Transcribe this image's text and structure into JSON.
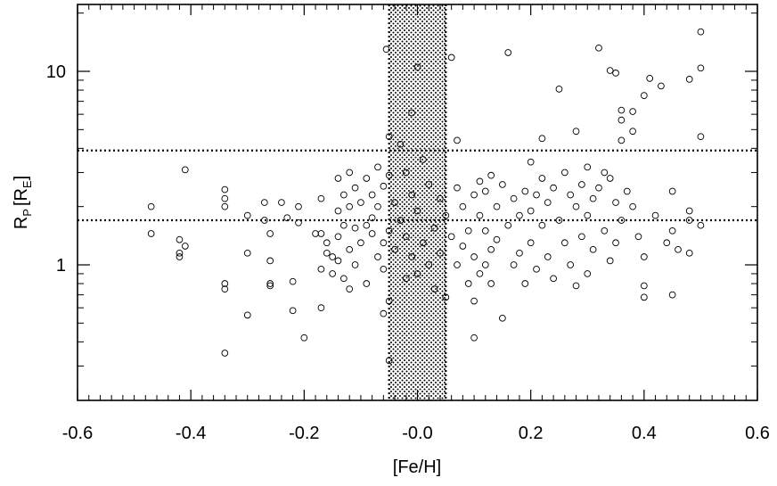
{
  "chart_data": {
    "type": "scatter",
    "title": "",
    "xlabel": "[Fe/H]",
    "ylabel": {
      "main": "R",
      "sub1": "P",
      "bracket_open": "[R",
      "sub2": "E",
      "bracket_close": "]"
    },
    "xlim": [
      -0.6,
      0.6
    ],
    "ylim": [
      0.22,
      22
    ],
    "y_scale": "log",
    "x_ticks": [
      -0.6,
      -0.4,
      -0.2,
      0.0,
      0.2,
      0.4,
      0.6
    ],
    "x_tick_labels": [
      "-0.6",
      "-0.4",
      "-0.2",
      "-0.0",
      "0.2",
      "0.4",
      "0.6"
    ],
    "y_ticks": [
      1,
      10
    ],
    "y_tick_labels": [
      "1",
      "10"
    ],
    "grid": false,
    "legend": "none",
    "shaded_band": {
      "x_from": -0.05,
      "x_to": 0.05,
      "pattern": "dotted"
    },
    "reference_lines": [
      {
        "axis": "y",
        "value": 3.9
      },
      {
        "axis": "y",
        "value": 1.7
      }
    ],
    "marker": "open-circle",
    "points": [
      {
        "x": -0.47,
        "y": 2.0
      },
      {
        "x": -0.47,
        "y": 1.45
      },
      {
        "x": -0.42,
        "y": 1.35
      },
      {
        "x": -0.42,
        "y": 1.15
      },
      {
        "x": -0.42,
        "y": 1.1
      },
      {
        "x": -0.41,
        "y": 3.1
      },
      {
        "x": -0.41,
        "y": 1.25
      },
      {
        "x": -0.34,
        "y": 2.45
      },
      {
        "x": -0.34,
        "y": 2.2
      },
      {
        "x": -0.34,
        "y": 2.0
      },
      {
        "x": -0.34,
        "y": 0.8
      },
      {
        "x": -0.34,
        "y": 0.75
      },
      {
        "x": -0.34,
        "y": 0.35
      },
      {
        "x": -0.3,
        "y": 1.8
      },
      {
        "x": -0.3,
        "y": 1.15
      },
      {
        "x": -0.3,
        "y": 0.55
      },
      {
        "x": -0.27,
        "y": 2.1
      },
      {
        "x": -0.27,
        "y": 1.7
      },
      {
        "x": -0.26,
        "y": 1.45
      },
      {
        "x": -0.26,
        "y": 1.05
      },
      {
        "x": -0.26,
        "y": 0.8
      },
      {
        "x": -0.26,
        "y": 0.78
      },
      {
        "x": -0.24,
        "y": 2.1
      },
      {
        "x": -0.23,
        "y": 1.75
      },
      {
        "x": -0.22,
        "y": 0.82
      },
      {
        "x": -0.22,
        "y": 0.58
      },
      {
        "x": -0.21,
        "y": 2.0
      },
      {
        "x": -0.21,
        "y": 1.65
      },
      {
        "x": -0.2,
        "y": 0.42
      },
      {
        "x": -0.18,
        "y": 1.45
      },
      {
        "x": -0.17,
        "y": 1.45
      },
      {
        "x": -0.17,
        "y": 2.2
      },
      {
        "x": -0.17,
        "y": 0.95
      },
      {
        "x": -0.17,
        "y": 0.6
      },
      {
        "x": -0.16,
        "y": 1.3
      },
      {
        "x": -0.16,
        "y": 1.15
      },
      {
        "x": -0.15,
        "y": 1.1
      },
      {
        "x": -0.15,
        "y": 0.9
      },
      {
        "x": -0.14,
        "y": 2.8
      },
      {
        "x": -0.14,
        "y": 1.9
      },
      {
        "x": -0.14,
        "y": 1.4
      },
      {
        "x": -0.14,
        "y": 1.05
      },
      {
        "x": -0.13,
        "y": 2.3
      },
      {
        "x": -0.13,
        "y": 1.6
      },
      {
        "x": -0.13,
        "y": 0.85
      },
      {
        "x": -0.12,
        "y": 3.0
      },
      {
        "x": -0.12,
        "y": 2.0
      },
      {
        "x": -0.12,
        "y": 1.2
      },
      {
        "x": -0.12,
        "y": 0.75
      },
      {
        "x": -0.11,
        "y": 2.5
      },
      {
        "x": -0.11,
        "y": 1.55
      },
      {
        "x": -0.11,
        "y": 1.0
      },
      {
        "x": -0.1,
        "y": 2.1
      },
      {
        "x": -0.1,
        "y": 1.3
      },
      {
        "x": -0.09,
        "y": 2.8
      },
      {
        "x": -0.09,
        "y": 1.6
      },
      {
        "x": -0.09,
        "y": 0.8
      },
      {
        "x": -0.08,
        "y": 2.3
      },
      {
        "x": -0.08,
        "y": 1.75
      },
      {
        "x": -0.08,
        "y": 1.45
      },
      {
        "x": -0.07,
        "y": 3.2
      },
      {
        "x": -0.07,
        "y": 2.0
      },
      {
        "x": -0.07,
        "y": 1.1
      },
      {
        "x": -0.06,
        "y": 2.55
      },
      {
        "x": -0.06,
        "y": 1.3
      },
      {
        "x": -0.06,
        "y": 0.95
      },
      {
        "x": -0.06,
        "y": 0.56
      },
      {
        "x": -0.055,
        "y": 13.0
      },
      {
        "x": -0.05,
        "y": 4.6
      },
      {
        "x": -0.05,
        "y": 2.9
      },
      {
        "x": -0.05,
        "y": 1.5
      },
      {
        "x": -0.05,
        "y": 0.65
      },
      {
        "x": -0.05,
        "y": 0.32
      },
      {
        "x": -0.04,
        "y": 2.1
      },
      {
        "x": -0.04,
        "y": 1.2
      },
      {
        "x": -0.03,
        "y": 4.2
      },
      {
        "x": -0.03,
        "y": 1.7
      },
      {
        "x": -0.02,
        "y": 3.0
      },
      {
        "x": -0.02,
        "y": 1.4
      },
      {
        "x": -0.02,
        "y": 0.85
      },
      {
        "x": -0.01,
        "y": 6.1
      },
      {
        "x": -0.01,
        "y": 2.3
      },
      {
        "x": -0.01,
        "y": 1.1
      },
      {
        "x": 0.0,
        "y": 10.5
      },
      {
        "x": 0.0,
        "y": 1.9
      },
      {
        "x": 0.0,
        "y": 0.9
      },
      {
        "x": 0.01,
        "y": 3.5
      },
      {
        "x": 0.01,
        "y": 1.3
      },
      {
        "x": 0.02,
        "y": 2.6
      },
      {
        "x": 0.02,
        "y": 1.0
      },
      {
        "x": 0.03,
        "y": 1.55
      },
      {
        "x": 0.03,
        "y": 0.75
      },
      {
        "x": 0.04,
        "y": 2.2
      },
      {
        "x": 0.04,
        "y": 1.15
      },
      {
        "x": 0.05,
        "y": 1.8
      },
      {
        "x": 0.05,
        "y": 0.68
      },
      {
        "x": 0.06,
        "y": 11.8
      },
      {
        "x": 0.06,
        "y": 1.4
      },
      {
        "x": 0.07,
        "y": 4.4
      },
      {
        "x": 0.07,
        "y": 2.5
      },
      {
        "x": 0.07,
        "y": 1.0
      },
      {
        "x": 0.08,
        "y": 2.0
      },
      {
        "x": 0.08,
        "y": 1.25
      },
      {
        "x": 0.09,
        "y": 1.5
      },
      {
        "x": 0.09,
        "y": 0.8
      },
      {
        "x": 0.1,
        "y": 2.3
      },
      {
        "x": 0.1,
        "y": 1.1
      },
      {
        "x": 0.1,
        "y": 0.65
      },
      {
        "x": 0.1,
        "y": 0.42
      },
      {
        "x": 0.11,
        "y": 2.7
      },
      {
        "x": 0.11,
        "y": 1.8
      },
      {
        "x": 0.11,
        "y": 0.9
      },
      {
        "x": 0.12,
        "y": 2.4
      },
      {
        "x": 0.12,
        "y": 1.5
      },
      {
        "x": 0.12,
        "y": 1.0
      },
      {
        "x": 0.13,
        "y": 2.9
      },
      {
        "x": 0.13,
        "y": 1.2
      },
      {
        "x": 0.13,
        "y": 0.8
      },
      {
        "x": 0.14,
        "y": 2.0
      },
      {
        "x": 0.14,
        "y": 1.35
      },
      {
        "x": 0.15,
        "y": 2.6
      },
      {
        "x": 0.15,
        "y": 0.53
      },
      {
        "x": 0.16,
        "y": 12.5
      },
      {
        "x": 0.16,
        "y": 1.6
      },
      {
        "x": 0.17,
        "y": 2.2
      },
      {
        "x": 0.17,
        "y": 1.0
      },
      {
        "x": 0.18,
        "y": 1.8
      },
      {
        "x": 0.18,
        "y": 1.15
      },
      {
        "x": 0.19,
        "y": 2.4
      },
      {
        "x": 0.19,
        "y": 0.8
      },
      {
        "x": 0.2,
        "y": 3.4
      },
      {
        "x": 0.2,
        "y": 1.9
      },
      {
        "x": 0.2,
        "y": 1.3
      },
      {
        "x": 0.21,
        "y": 2.3
      },
      {
        "x": 0.21,
        "y": 0.95
      },
      {
        "x": 0.22,
        "y": 4.5
      },
      {
        "x": 0.22,
        "y": 2.8
      },
      {
        "x": 0.22,
        "y": 1.6
      },
      {
        "x": 0.23,
        "y": 2.1
      },
      {
        "x": 0.23,
        "y": 1.1
      },
      {
        "x": 0.24,
        "y": 2.5
      },
      {
        "x": 0.24,
        "y": 0.85
      },
      {
        "x": 0.25,
        "y": 8.1
      },
      {
        "x": 0.25,
        "y": 1.7
      },
      {
        "x": 0.26,
        "y": 3.0
      },
      {
        "x": 0.26,
        "y": 1.3
      },
      {
        "x": 0.27,
        "y": 2.3
      },
      {
        "x": 0.27,
        "y": 1.0
      },
      {
        "x": 0.28,
        "y": 4.9
      },
      {
        "x": 0.28,
        "y": 2.0
      },
      {
        "x": 0.28,
        "y": 0.78
      },
      {
        "x": 0.29,
        "y": 2.6
      },
      {
        "x": 0.29,
        "y": 1.4
      },
      {
        "x": 0.3,
        "y": 3.2
      },
      {
        "x": 0.3,
        "y": 1.8
      },
      {
        "x": 0.3,
        "y": 0.9
      },
      {
        "x": 0.31,
        "y": 2.2
      },
      {
        "x": 0.31,
        "y": 1.2
      },
      {
        "x": 0.32,
        "y": 13.2
      },
      {
        "x": 0.32,
        "y": 2.5
      },
      {
        "x": 0.33,
        "y": 3.0
      },
      {
        "x": 0.33,
        "y": 1.5
      },
      {
        "x": 0.34,
        "y": 10.1
      },
      {
        "x": 0.34,
        "y": 2.8
      },
      {
        "x": 0.34,
        "y": 1.05
      },
      {
        "x": 0.35,
        "y": 9.8
      },
      {
        "x": 0.35,
        "y": 2.1
      },
      {
        "x": 0.35,
        "y": 1.3
      },
      {
        "x": 0.36,
        "y": 6.3
      },
      {
        "x": 0.36,
        "y": 5.6
      },
      {
        "x": 0.36,
        "y": 4.4
      },
      {
        "x": 0.36,
        "y": 1.7
      },
      {
        "x": 0.37,
        "y": 2.4
      },
      {
        "x": 0.38,
        "y": 6.2
      },
      {
        "x": 0.38,
        "y": 4.9
      },
      {
        "x": 0.38,
        "y": 2.0
      },
      {
        "x": 0.39,
        "y": 1.4
      },
      {
        "x": 0.4,
        "y": 7.5
      },
      {
        "x": 0.4,
        "y": 1.1
      },
      {
        "x": 0.4,
        "y": 0.78
      },
      {
        "x": 0.4,
        "y": 0.68
      },
      {
        "x": 0.41,
        "y": 9.2
      },
      {
        "x": 0.42,
        "y": 1.8
      },
      {
        "x": 0.43,
        "y": 8.4
      },
      {
        "x": 0.44,
        "y": 1.3
      },
      {
        "x": 0.45,
        "y": 2.4
      },
      {
        "x": 0.45,
        "y": 1.5
      },
      {
        "x": 0.45,
        "y": 0.7
      },
      {
        "x": 0.46,
        "y": 1.2
      },
      {
        "x": 0.48,
        "y": 9.1
      },
      {
        "x": 0.48,
        "y": 1.9
      },
      {
        "x": 0.48,
        "y": 1.7
      },
      {
        "x": 0.48,
        "y": 1.15
      },
      {
        "x": 0.5,
        "y": 16.0
      },
      {
        "x": 0.5,
        "y": 10.4
      },
      {
        "x": 0.5,
        "y": 4.6
      },
      {
        "x": 0.5,
        "y": 1.6
      }
    ]
  }
}
